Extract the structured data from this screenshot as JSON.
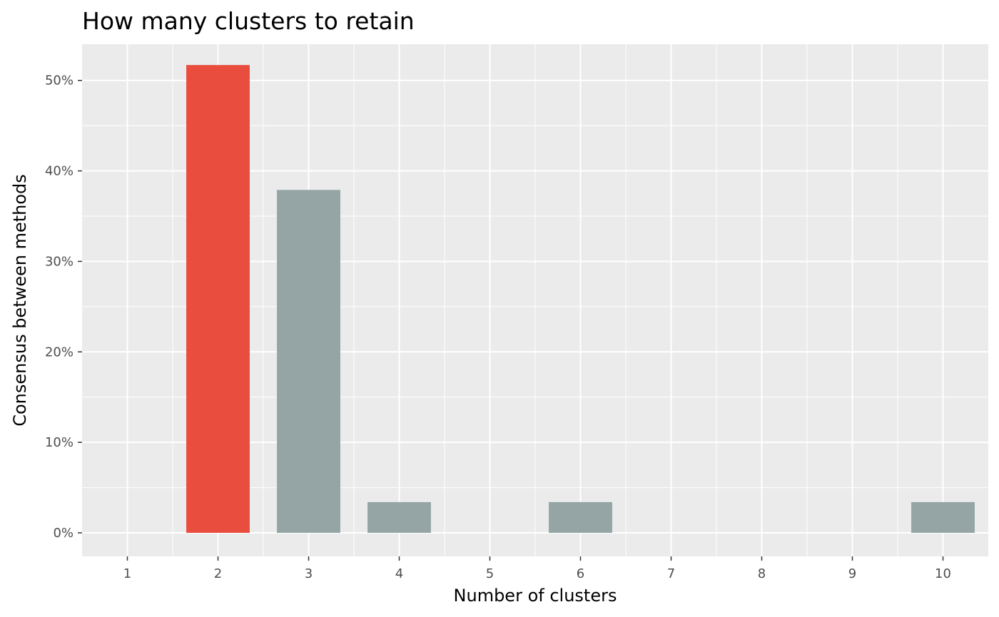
{
  "chart_data": {
    "type": "bar",
    "title": "How many clusters to retain",
    "xlabel": "Number of clusters",
    "ylabel": "Consensus between methods",
    "x_ticks": [
      "1",
      "2",
      "3",
      "4",
      "5",
      "6",
      "7",
      "8",
      "9",
      "10"
    ],
    "y_ticks": [
      "0%",
      "10%",
      "20%",
      "30%",
      "40%",
      "50%"
    ],
    "ylim": [
      -0.026,
      0.54
    ],
    "categories": [
      "2",
      "3",
      "4",
      "6",
      "10"
    ],
    "values": [
      0.517,
      0.379,
      0.034,
      0.034,
      0.034
    ],
    "grid": true,
    "colors": {
      "highlight": "#E84D3D",
      "default": "#95A5A5",
      "panel_background": "#EBEBEB",
      "grid": "#FFFFFF"
    },
    "highlighted_category": "2"
  }
}
